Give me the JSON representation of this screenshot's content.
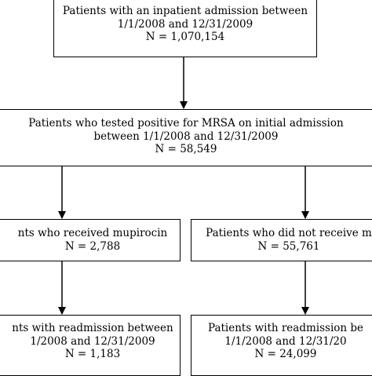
{
  "boxes": {
    "top": {
      "line1": "Patients with an inpatient admission between",
      "line2": "1/1/2008 and 12/31/2009",
      "line3": "N = 1,070,154"
    },
    "mrsa": {
      "line1": "Patients who tested positive for MRSA on initial admission",
      "line2": "between 1/1/2008 and 12/31/2009",
      "line3": "N = 58,549"
    },
    "mupirocin": {
      "line1": "nts who received mupirocin",
      "line2": "N = 2,788"
    },
    "no_mupirocin": {
      "line1": "Patients who did not receive m",
      "line2": "N = 55,761"
    },
    "readmit_left": {
      "line1": "nts with readmission between",
      "line2": "1/2008 and 12/31/2009",
      "line3": "N = 1,183"
    },
    "readmit_right": {
      "line1": "Patients with readmission be",
      "line2": "1/1/2008 and 12/31/20",
      "line3": "N = 24,099"
    }
  }
}
